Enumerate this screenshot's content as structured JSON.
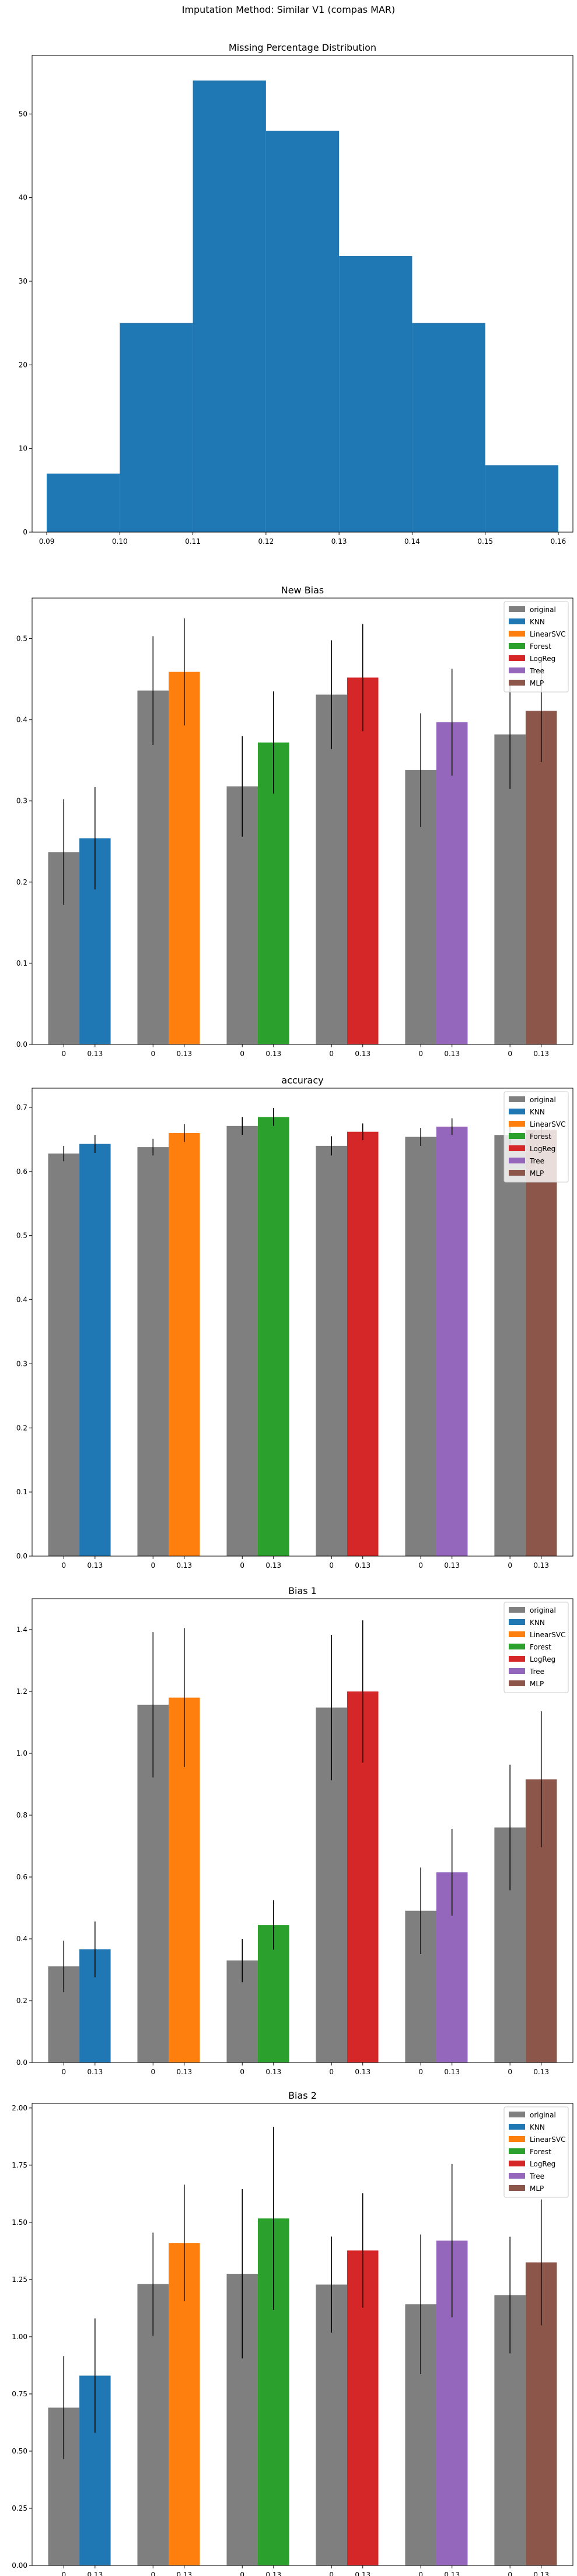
{
  "figure": {
    "suptitle": "Imputation Method: Similar V1 (compas MAR)"
  },
  "colors": {
    "original": "#7f7f7f",
    "KNN": "#1f77b4",
    "LinearSVC": "#ff7f0e",
    "Forest": "#2ca02c",
    "LogReg": "#d62728",
    "Tree": "#9467bd",
    "MLP": "#8c564b"
  },
  "legend": {
    "placement": "top-right",
    "entries": [
      "original",
      "KNN",
      "LinearSVC",
      "Forest",
      "LogReg",
      "Tree",
      "MLP"
    ]
  },
  "chart_data": [
    {
      "type": "histogram",
      "title": "Missing Percentage Distribution",
      "xlabel": "",
      "ylabel": "",
      "xlim": [
        0.088,
        0.162
      ],
      "ylim": [
        0,
        57
      ],
      "xticks": [
        "0.09",
        "0.10",
        "0.11",
        "0.12",
        "0.13",
        "0.14",
        "0.15",
        "0.16"
      ],
      "yticks": [
        "0",
        "10",
        "20",
        "30",
        "40",
        "50"
      ],
      "bins": [
        0.09,
        0.1,
        0.11,
        0.12,
        0.13,
        0.14,
        0.15,
        0.16
      ],
      "counts": [
        7,
        25,
        54,
        48,
        33,
        25,
        8
      ]
    },
    {
      "type": "bar",
      "title": "New Bias",
      "ylim": [
        0,
        0.55
      ],
      "yticks": [
        "0.0",
        "0.1",
        "0.2",
        "0.3",
        "0.4",
        "0.5"
      ],
      "groups": [
        "KNN",
        "LinearSVC",
        "Forest",
        "LogReg",
        "Tree",
        "MLP"
      ],
      "bar_labels": [
        "0",
        "0.13"
      ],
      "original": [
        0.237,
        0.436,
        0.318,
        0.431,
        0.338,
        0.382
      ],
      "original_err": [
        0.065,
        0.067,
        0.062,
        0.067,
        0.07,
        0.067
      ],
      "imputed": [
        0.254,
        0.459,
        0.372,
        0.452,
        0.397,
        0.411
      ],
      "imputed_err": [
        0.063,
        0.066,
        0.063,
        0.066,
        0.066,
        0.063
      ]
    },
    {
      "type": "bar",
      "title": "accuracy",
      "ylim": [
        0,
        0.73
      ],
      "yticks": [
        "0.0",
        "0.1",
        "0.2",
        "0.3",
        "0.4",
        "0.5",
        "0.6",
        "0.7"
      ],
      "groups": [
        "KNN",
        "LinearSVC",
        "Forest",
        "LogReg",
        "Tree",
        "MLP"
      ],
      "bar_labels": [
        "0",
        "0.13"
      ],
      "original": [
        0.628,
        0.638,
        0.671,
        0.64,
        0.654,
        0.657
      ],
      "original_err": [
        0.012,
        0.013,
        0.014,
        0.015,
        0.014,
        0.014
      ],
      "imputed": [
        0.643,
        0.66,
        0.685,
        0.662,
        0.67,
        0.665
      ],
      "imputed_err": [
        0.014,
        0.014,
        0.014,
        0.013,
        0.013,
        0.014
      ]
    },
    {
      "type": "bar",
      "title": "Bias 1",
      "ylim": [
        0,
        1.5
      ],
      "yticks": [
        "0.0",
        "0.2",
        "0.4",
        "0.6",
        "0.8",
        "1.0",
        "1.2",
        "1.4"
      ],
      "groups": [
        "KNN",
        "LinearSVC",
        "Forest",
        "LogReg",
        "Tree",
        "MLP"
      ],
      "bar_labels": [
        "0",
        "0.13"
      ],
      "original": [
        0.311,
        1.157,
        0.33,
        1.148,
        0.491,
        0.76
      ],
      "original_err": [
        0.083,
        0.235,
        0.07,
        0.235,
        0.14,
        0.203
      ],
      "imputed": [
        0.366,
        1.18,
        0.445,
        1.2,
        0.615,
        0.916
      ],
      "imputed_err": [
        0.09,
        0.225,
        0.08,
        0.23,
        0.14,
        0.22
      ]
    },
    {
      "type": "bar",
      "title": "Bias 2",
      "ylim": [
        0,
        2.02
      ],
      "yticks": [
        "0.00",
        "0.25",
        "0.50",
        "0.75",
        "1.00",
        "1.25",
        "1.50",
        "1.75",
        "2.00"
      ],
      "groups": [
        "KNN",
        "LinearSVC",
        "Forest",
        "LogReg",
        "Tree",
        "MLP"
      ],
      "bar_labels": [
        "0",
        "0.13"
      ],
      "original": [
        0.69,
        1.23,
        1.275,
        1.228,
        1.142,
        1.182
      ],
      "original_err": [
        0.225,
        0.225,
        0.37,
        0.21,
        0.305,
        0.255
      ],
      "imputed": [
        0.83,
        1.41,
        1.517,
        1.377,
        1.42,
        1.325
      ],
      "imputed_err": [
        0.25,
        0.255,
        0.4,
        0.25,
        0.335,
        0.275
      ]
    }
  ]
}
